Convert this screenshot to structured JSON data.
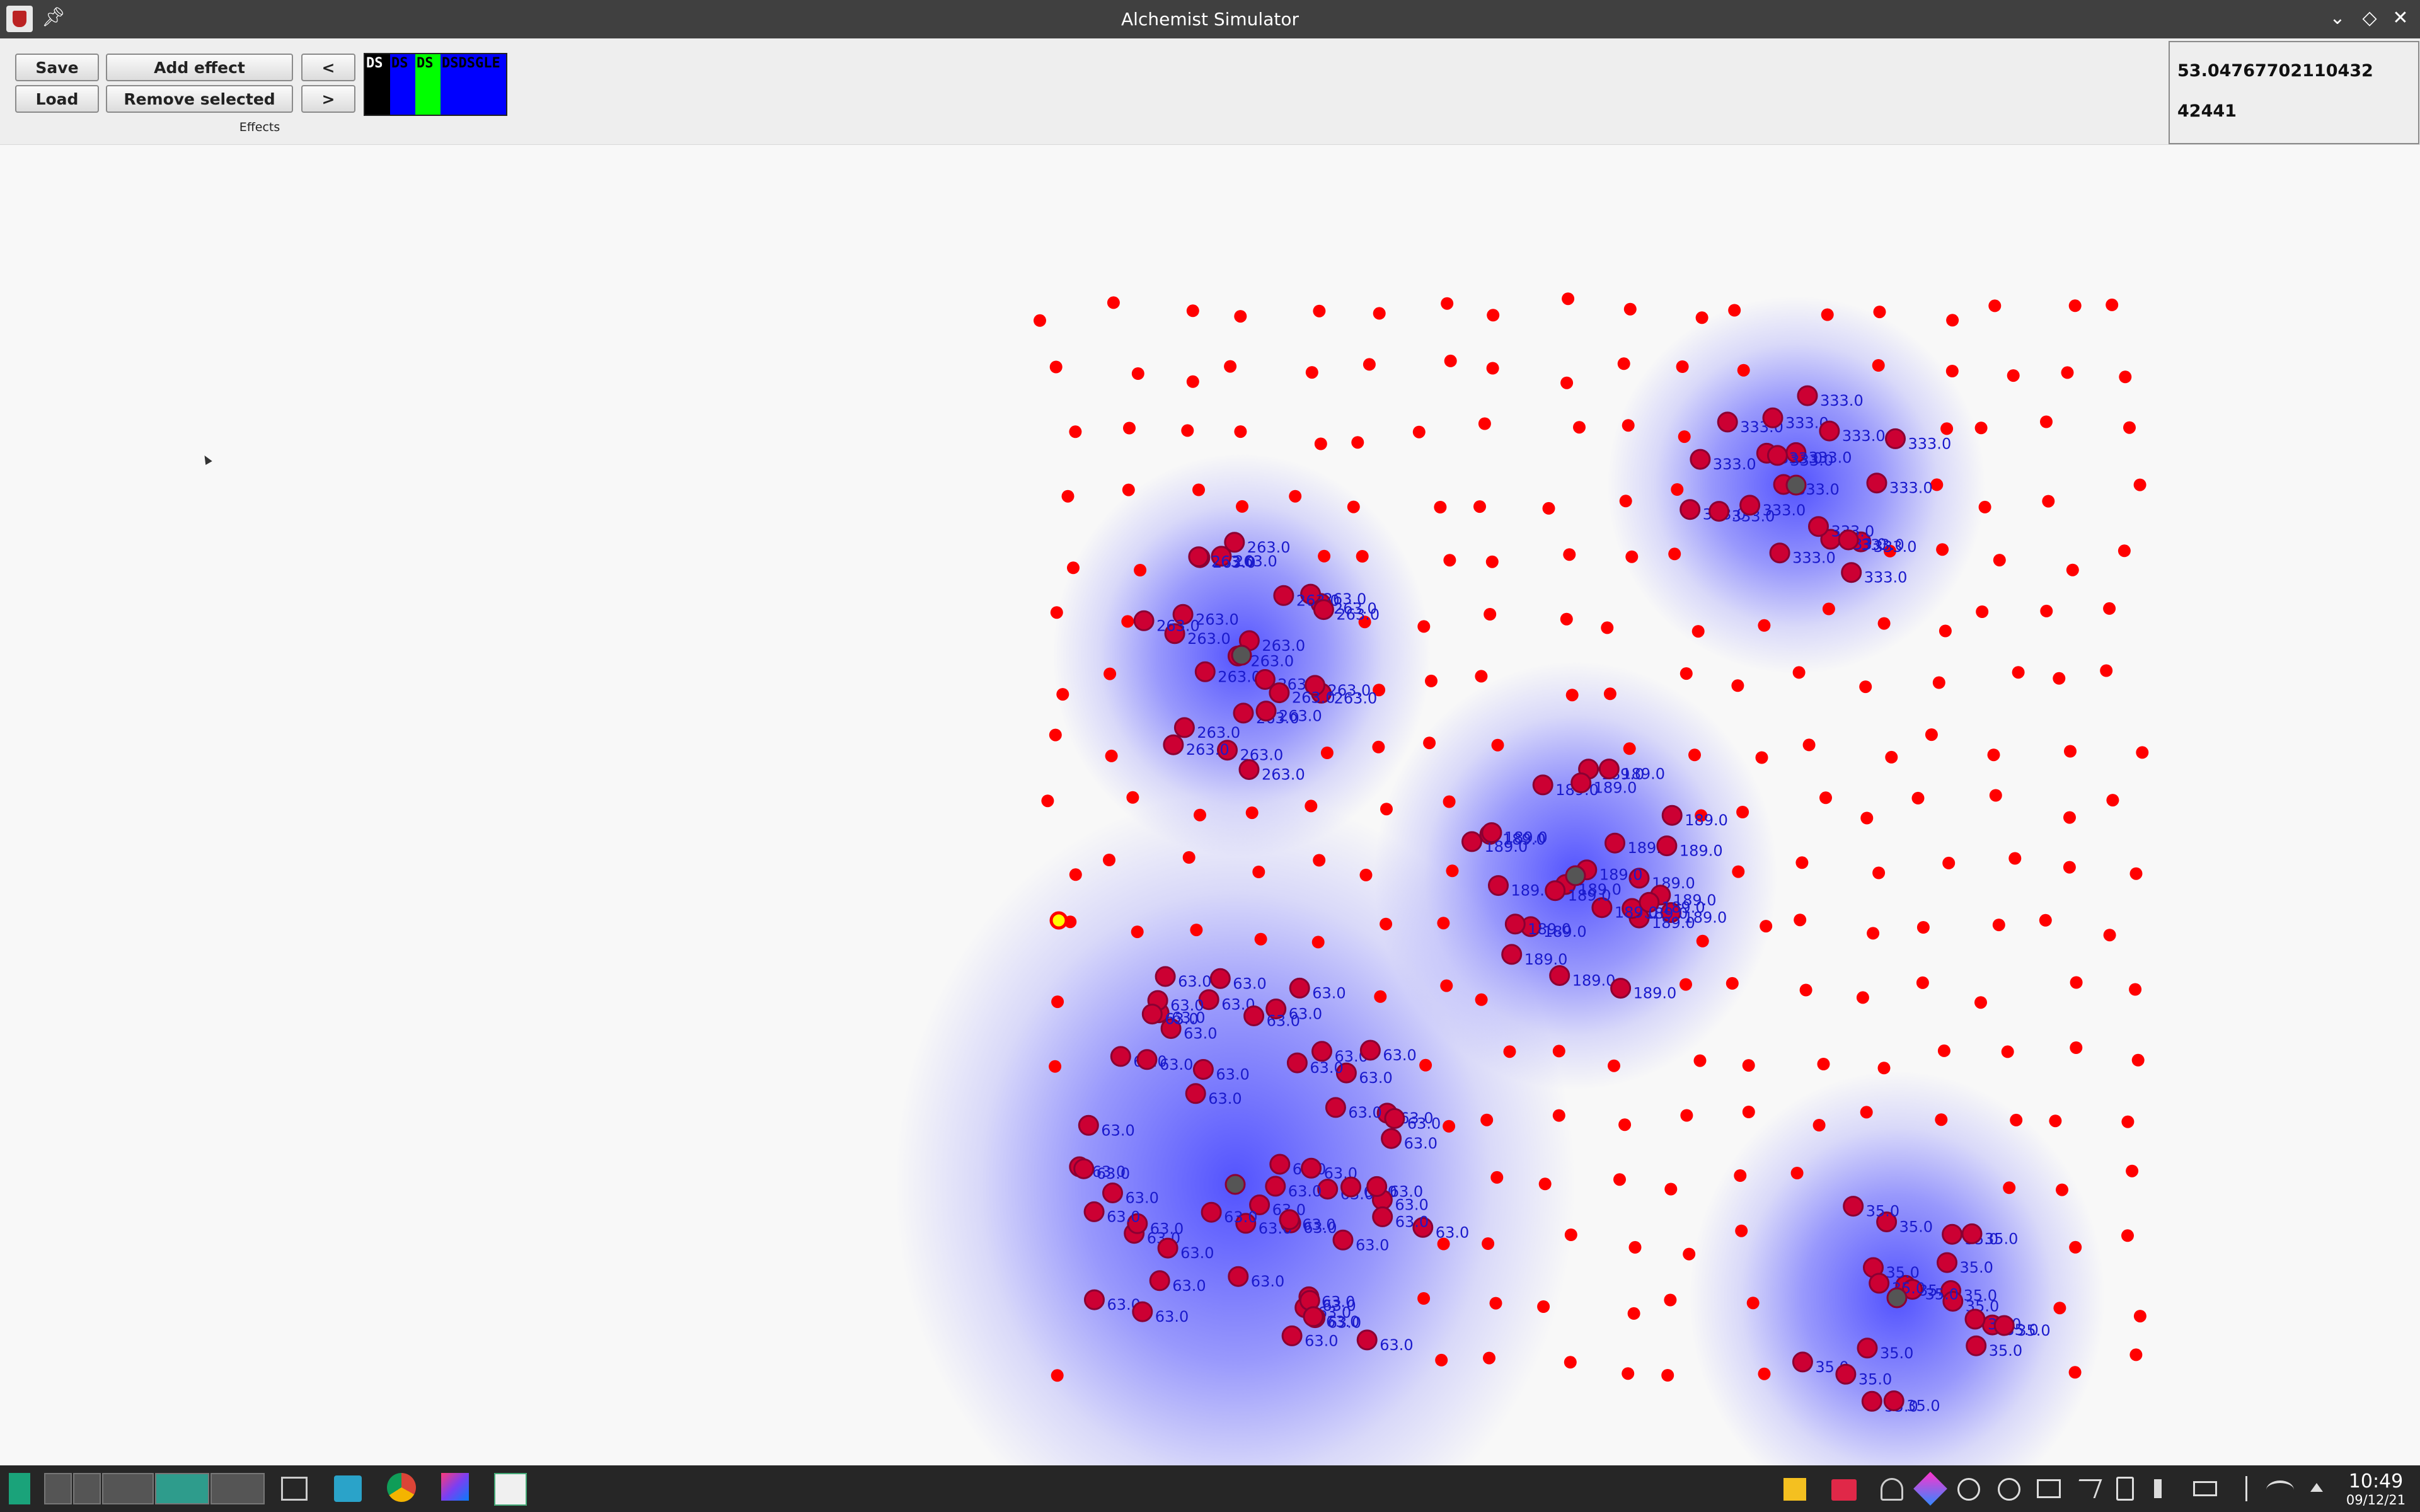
{
  "window": {
    "title": "Alchemist Simulator",
    "controls": [
      "minimize",
      "maximize",
      "close"
    ]
  },
  "toolbar": {
    "save_label": "Save",
    "load_label": "Load",
    "add_effect_label": "Add effect",
    "remove_selected_label": "Remove selected",
    "prev_label": "<",
    "next_label": ">",
    "effects_label": "Effects",
    "effect_colors": [
      {
        "label": "DS",
        "color": "#000000",
        "text_color": "#ffffff"
      },
      {
        "label": "DS",
        "color": "#0000ff",
        "text_color": "#000000"
      },
      {
        "label": "DS",
        "color": "#00ff00",
        "text_color": "#000000"
      },
      {
        "label": "DSDSGLE",
        "color": "#0000ff",
        "text_color": "#000000"
      }
    ]
  },
  "info": {
    "line1": "53.04767702110432",
    "line2": "42441"
  },
  "simulation": {
    "point_color": "#ff0000",
    "highlight_color": "#cc0033",
    "center_color": "#555555",
    "field_color": "#4a4aff",
    "label_color": "#1a1acc",
    "selected_color": "#ffff00",
    "clusters": [
      {
        "value": "333.0",
        "count": 20
      },
      {
        "value": "263.0",
        "count": 24
      },
      {
        "value": "189.0",
        "count": 26
      },
      {
        "value": "63.0",
        "count": 56
      },
      {
        "value": "35.0",
        "count": 20
      }
    ],
    "grid": {
      "columns": 18,
      "rows": 18
    }
  },
  "taskbar": {
    "icons": [
      "menu-icon",
      "workspace-1",
      "workspace-2",
      "workspace-3",
      "workspace-4",
      "workspace-5",
      "task-manager-icon",
      "files-icon",
      "chrome-icon",
      "intellij-icon",
      "alchemist-icon"
    ],
    "tray_icons": [
      "note-icon",
      "folder-icon",
      "bell-icon",
      "paint-icon",
      "pause-icon",
      "clipboard-icon",
      "terminal-icon",
      "send-icon",
      "battery-icon",
      "volume-icon",
      "charge-icon",
      "bluetooth-icon",
      "wifi-icon",
      "tray-arrow-icon"
    ],
    "time": "10:49",
    "date": "09/12/21"
  }
}
